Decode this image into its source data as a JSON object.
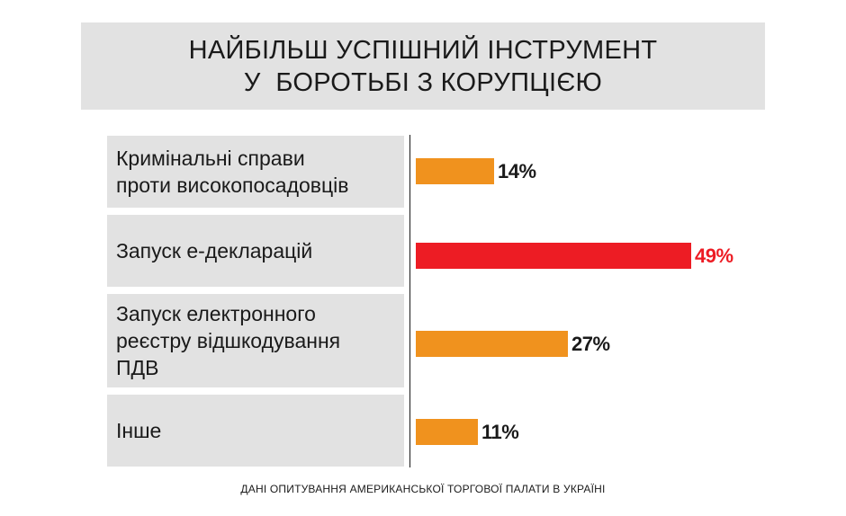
{
  "chart_data": {
    "type": "bar",
    "orientation": "horizontal",
    "title_lines": [
      "НАЙБІЛЬШ УСПІШНИЙ ІНСТРУМЕНТ",
      "У  БОРОТЬБІ З КОРУПЦІЄЮ"
    ],
    "categories": [
      "Кримінальні справи\nпроти високопосадовців",
      "Запуск е-декларацій",
      "Запуск електронного\nреєстру відшкодування\nПДВ",
      "Інше"
    ],
    "values": [
      14,
      49,
      27,
      11
    ],
    "value_labels": [
      "14%",
      "49%",
      "27%",
      "11%"
    ],
    "bar_colors": [
      "#f0921e",
      "#ed1c24",
      "#f0921e",
      "#f0921e"
    ],
    "label_colors": [
      "#1a1a1a",
      "#ed1c24",
      "#1a1a1a",
      "#1a1a1a"
    ],
    "xlim": [
      0,
      49
    ],
    "grid": false,
    "legend": "none"
  },
  "source": "ДАНІ ОПИТУВАННЯ АМЕРИКАНСЬКОЇ ТОРГОВОЇ ПАЛАТИ В УКРАЇНІ"
}
